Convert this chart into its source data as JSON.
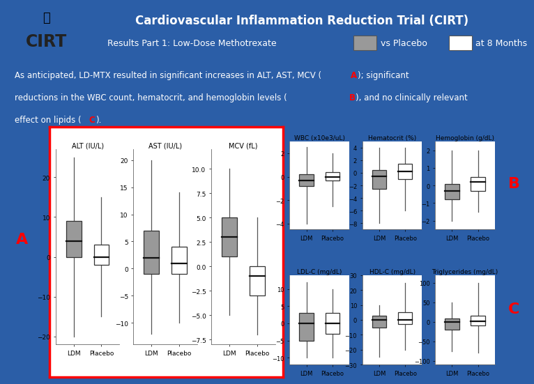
{
  "title": "Cardiovascular Inflammation Reduction Trial (CIRT)",
  "subtitle_pre": "Results Part 1: Low-Dose Methotrexate",
  "subtitle_mid": "vs Placebo",
  "subtitle_post": "at 8 Months",
  "bg_color": "#2B5EA7",
  "separator_color": "#CC2200",
  "plots_A": [
    {
      "title": "ALT (IU/L)",
      "ldm": {
        "median": 4,
        "q1": 0,
        "q3": 9,
        "whislo": -20,
        "whishi": 25
      },
      "placebo": {
        "median": 0,
        "q1": -2,
        "q3": 3,
        "whislo": -15,
        "whishi": 15
      },
      "ylim": [
        -22,
        27
      ]
    },
    {
      "title": "AST (IU/L)",
      "ldm": {
        "median": 2,
        "q1": -1,
        "q3": 7,
        "whislo": -12,
        "whishi": 20
      },
      "placebo": {
        "median": 1,
        "q1": -1,
        "q3": 4,
        "whislo": -10,
        "whishi": 14
      },
      "ylim": [
        -14,
        22
      ]
    },
    {
      "title": "MCV (fL)",
      "ldm": {
        "median": 3,
        "q1": 1,
        "q3": 5,
        "whislo": -5,
        "whishi": 10
      },
      "placebo": {
        "median": -1,
        "q1": -3,
        "q3": 0,
        "whislo": -7,
        "whishi": 5
      },
      "ylim": [
        -8,
        12
      ]
    }
  ],
  "plots_B": [
    {
      "title": "WBC (x10e3/uL)",
      "ldm": {
        "median": -0.3,
        "q1": -0.8,
        "q3": 0.2,
        "whislo": -4,
        "whishi": 2.5
      },
      "placebo": {
        "median": 0,
        "q1": -0.3,
        "q3": 0.4,
        "whislo": -2.5,
        "whishi": 2
      },
      "ylim": [
        -4.5,
        3
      ]
    },
    {
      "title": "Hematocrit (%)",
      "ldm": {
        "median": -0.5,
        "q1": -2.5,
        "q3": 0.5,
        "whislo": -8,
        "whishi": 4
      },
      "placebo": {
        "median": 0.2,
        "q1": -1,
        "q3": 1.5,
        "whislo": -6,
        "whishi": 4
      },
      "ylim": [
        -9,
        5
      ]
    },
    {
      "title": "Hemoglobin (g/dL)",
      "ldm": {
        "median": -0.3,
        "q1": -0.8,
        "q3": 0.1,
        "whislo": -2,
        "whishi": 2
      },
      "placebo": {
        "median": 0.2,
        "q1": -0.3,
        "q3": 0.5,
        "whislo": -1.5,
        "whishi": 2
      },
      "ylim": [
        -2.5,
        2.5
      ]
    }
  ],
  "plots_C": [
    {
      "title": "LDL-C (mg/dL)",
      "ldm": {
        "median": 0,
        "q1": -5,
        "q3": 3,
        "whislo": -10,
        "whishi": 12
      },
      "placebo": {
        "median": 0,
        "q1": -3,
        "q3": 3,
        "whislo": -10,
        "whishi": 10
      },
      "ylim": [
        -12,
        14
      ]
    },
    {
      "title": "HDL-C (mg/dL)",
      "ldm": {
        "median": 0,
        "q1": -5,
        "q3": 3,
        "whislo": -25,
        "whishi": 10
      },
      "placebo": {
        "median": 0,
        "q1": -3,
        "q3": 5,
        "whislo": -20,
        "whishi": 25
      },
      "ylim": [
        -30,
        30
      ]
    },
    {
      "title": "Triglycerides (mg/dL)",
      "ldm": {
        "median": 0,
        "q1": -20,
        "q3": 8,
        "whislo": -75,
        "whishi": 50
      },
      "placebo": {
        "median": 2,
        "q1": -10,
        "q3": 15,
        "whislo": -80,
        "whishi": 100
      },
      "ylim": [
        -110,
        120
      ]
    }
  ],
  "ldm_color": "#999999",
  "placebo_color": "#ffffff"
}
